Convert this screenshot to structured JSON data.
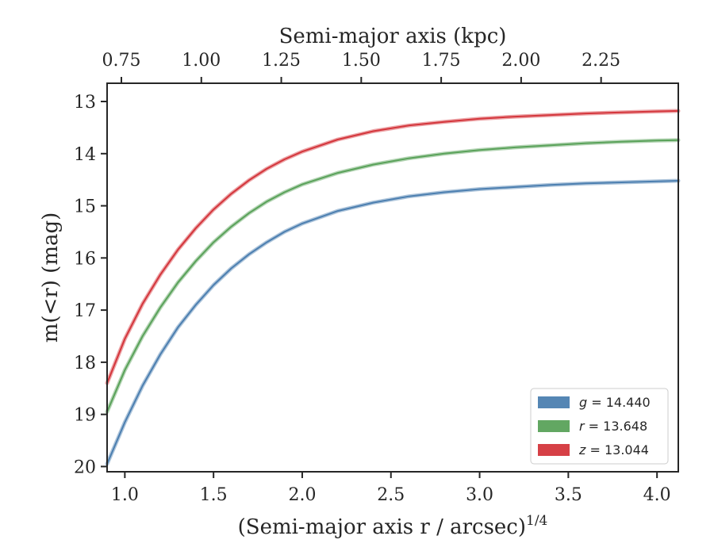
{
  "chart_data": {
    "type": "line",
    "xlabel": "(Semi-major axis r / arcsec)",
    "xlabel_exponent": "1/4",
    "ylabel": "m(<r) (mag)",
    "top_xlabel": "Semi-major axis (kpc)",
    "xlim": [
      0.9,
      4.12
    ],
    "ylim": [
      20.1,
      12.65
    ],
    "y_inverted": true,
    "x_ticks": [
      "1.0",
      "1.5",
      "2.0",
      "2.5",
      "3.0",
      "3.5",
      "4.0"
    ],
    "y_ticks": [
      "13",
      "14",
      "15",
      "16",
      "17",
      "18",
      "19",
      "20"
    ],
    "top_x_ticks": [
      "0.75",
      "1.00",
      "1.25",
      "1.50",
      "1.75",
      "2.00",
      "2.25"
    ],
    "top_tick_positions": [
      0.9805,
      1.4312,
      1.8819,
      2.3326,
      2.7833,
      3.234,
      3.6847
    ],
    "grid": false,
    "legend_position": "bottom-right",
    "x": [
      0.9,
      1.0,
      1.1,
      1.2,
      1.3,
      1.4,
      1.5,
      1.6,
      1.7,
      1.8,
      1.9,
      2.0,
      2.2,
      2.4,
      2.6,
      2.8,
      3.0,
      3.2,
      3.4,
      3.6,
      3.8,
      4.0,
      4.12
    ],
    "series": [
      {
        "name": "g = 14.440",
        "var": "g",
        "value": "14.440",
        "color": "#4c7fb0",
        "values": [
          19.95,
          19.15,
          18.45,
          17.85,
          17.33,
          16.9,
          16.52,
          16.2,
          15.93,
          15.7,
          15.5,
          15.34,
          15.1,
          14.94,
          14.82,
          14.74,
          14.68,
          14.64,
          14.6,
          14.57,
          14.55,
          14.53,
          14.52
        ]
      },
      {
        "name": "r = 13.648",
        "var": "r",
        "value": "13.648",
        "color": "#5aa25a",
        "values": [
          18.95,
          18.15,
          17.5,
          16.95,
          16.47,
          16.06,
          15.7,
          15.4,
          15.14,
          14.92,
          14.74,
          14.59,
          14.37,
          14.21,
          14.09,
          14.0,
          13.93,
          13.88,
          13.84,
          13.8,
          13.77,
          13.75,
          13.74
        ]
      },
      {
        "name": "z = 13.044",
        "var": "z",
        "value": "13.044",
        "color": "#d4363c",
        "values": [
          18.4,
          17.55,
          16.88,
          16.32,
          15.84,
          15.43,
          15.07,
          14.77,
          14.51,
          14.29,
          14.11,
          13.96,
          13.73,
          13.57,
          13.46,
          13.39,
          13.33,
          13.29,
          13.26,
          13.23,
          13.21,
          13.19,
          13.18
        ]
      }
    ]
  }
}
